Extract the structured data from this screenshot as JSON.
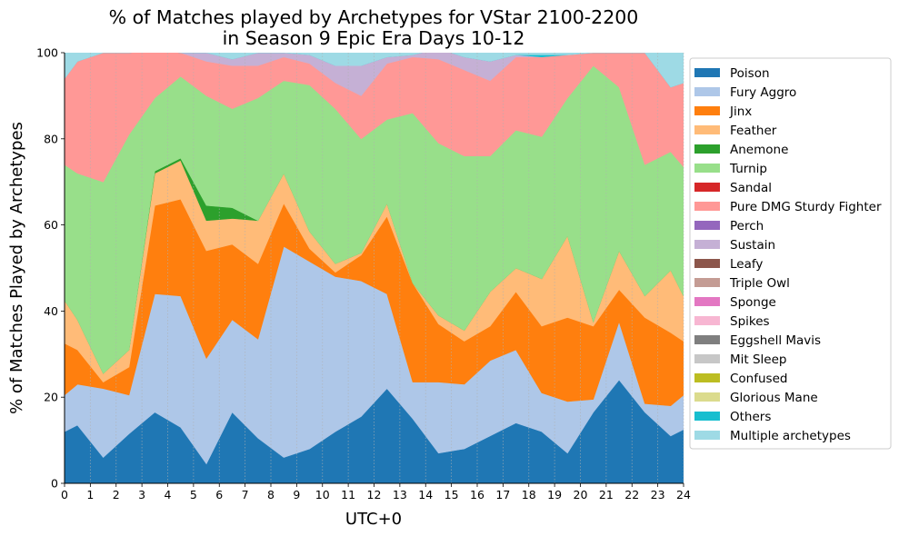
{
  "chart_data": {
    "type": "area",
    "stacked": true,
    "title": [
      "% of Matches played by Archetypes for VStar 2100-2200",
      "in Season 9 Epic Era Days 10-12"
    ],
    "xlabel": "UTC+0",
    "ylabel": "% of Matches Played by Archetypes",
    "xlim": [
      0,
      24
    ],
    "ylim": [
      0,
      100
    ],
    "xticks": [
      0,
      1,
      2,
      3,
      4,
      5,
      6,
      7,
      8,
      9,
      10,
      11,
      12,
      13,
      14,
      15,
      16,
      17,
      18,
      19,
      20,
      21,
      22,
      23,
      24
    ],
    "yticks": [
      0,
      20,
      40,
      60,
      80,
      100
    ],
    "grid": "vertical-dotted",
    "legend_position": "right-outside",
    "x": [
      0,
      0.5,
      1.5,
      2.5,
      3.5,
      4.5,
      5.5,
      6.5,
      7.5,
      8.5,
      9.5,
      10.5,
      11.5,
      12.5,
      13.5,
      14.5,
      15.5,
      16.5,
      17.5,
      18.5,
      19.5,
      20.5,
      21.5,
      22.5,
      23.5,
      24
    ],
    "series": [
      {
        "name": "Poison",
        "color": "#1f77b4",
        "values": [
          12,
          13.5,
          6,
          11.5,
          16.5,
          13,
          4.5,
          16.5,
          10.5,
          6,
          8,
          12,
          15.5,
          22,
          15,
          7,
          8,
          11,
          14,
          12,
          7,
          16.5,
          24,
          16.5,
          11,
          12.5
        ]
      },
      {
        "name": "Fury Aggro",
        "color": "#aec7e8",
        "values": [
          8.5,
          9.5,
          16,
          9,
          27.5,
          30.5,
          24.5,
          21.5,
          23,
          49,
          43.5,
          36,
          31.5,
          22,
          8.5,
          16.5,
          15,
          17.5,
          17,
          9,
          12,
          3,
          13.5,
          2,
          7,
          8
        ]
      },
      {
        "name": "Jinx",
        "color": "#ff7f0e",
        "values": [
          12,
          8,
          1.5,
          6.5,
          20.5,
          22.5,
          25,
          17.5,
          17.5,
          10,
          3,
          1,
          6,
          18,
          23,
          13.5,
          10,
          8,
          13.5,
          15.5,
          19.5,
          17,
          7.5,
          20,
          17,
          12.5
        ]
      },
      {
        "name": "Feather",
        "color": "#ffbb78",
        "values": [
          10,
          7,
          2,
          4,
          7.5,
          9,
          7,
          6,
          10,
          7,
          4,
          2,
          0.5,
          3,
          0,
          2,
          2.5,
          8,
          5.5,
          11,
          19,
          1,
          9,
          5,
          14.5,
          10.5
        ]
      },
      {
        "name": "Anemone",
        "color": "#2ca02c",
        "values": [
          0,
          0,
          0,
          0,
          0.5,
          0.5,
          3.5,
          2.5,
          0,
          0,
          0,
          0,
          0,
          0,
          0,
          0,
          0,
          0,
          0,
          0,
          0,
          0,
          0,
          0,
          0,
          0
        ]
      },
      {
        "name": "Turnip",
        "color": "#98df8a",
        "values": [
          31.5,
          34,
          44.5,
          50,
          17,
          19,
          25.5,
          23,
          28.5,
          21.5,
          34,
          36,
          26.5,
          19.5,
          39.5,
          40,
          40.5,
          31.5,
          32,
          33,
          32,
          59.5,
          38,
          30.5,
          27.5,
          30
        ]
      },
      {
        "name": "Sandal",
        "color": "#d62728",
        "values": [
          0,
          0,
          0,
          0,
          0,
          0,
          0,
          0,
          0,
          0,
          0,
          0,
          0,
          0,
          0,
          0,
          0,
          0,
          0,
          0,
          0,
          0,
          0,
          0,
          0,
          0
        ]
      },
      {
        "name": "Pure DMG Sturdy Fighter",
        "color": "#ff9896",
        "values": [
          20,
          26,
          30,
          19,
          11,
          5.5,
          8,
          10,
          7.5,
          5.5,
          5,
          6,
          10,
          13,
          13,
          19.5,
          20,
          17.5,
          17,
          18.5,
          10,
          3,
          8,
          26,
          15,
          19.5
        ]
      },
      {
        "name": "Perch",
        "color": "#9467bd",
        "values": [
          0,
          0,
          0,
          0,
          0,
          0,
          0,
          0,
          0,
          0,
          0,
          0,
          0,
          0,
          0,
          0,
          0,
          0,
          0,
          0,
          0,
          0,
          0,
          0,
          0,
          0
        ]
      },
      {
        "name": "Sustain",
        "color": "#c5b0d5",
        "values": [
          0,
          0,
          0,
          0,
          0,
          0,
          2,
          1.5,
          3,
          1,
          2,
          4,
          7,
          1.5,
          0.5,
          2.5,
          3,
          4.5,
          0.5,
          0,
          0,
          0,
          0,
          0,
          0,
          0
        ]
      },
      {
        "name": "Leafy",
        "color": "#8c564b",
        "values": [
          0,
          0,
          0,
          0,
          0,
          0,
          0,
          0,
          0,
          0,
          0,
          0,
          0,
          0,
          0,
          0,
          0,
          0,
          0,
          0,
          0,
          0,
          0,
          0,
          0,
          0
        ]
      },
      {
        "name": "Triple Owl",
        "color": "#c49c94",
        "values": [
          0,
          0,
          0,
          0,
          0,
          0,
          0,
          0,
          0,
          0,
          0,
          0,
          0,
          0,
          0,
          0,
          0,
          0,
          0,
          0,
          0,
          0,
          0,
          0,
          0,
          0
        ]
      },
      {
        "name": "Sponge",
        "color": "#e377c2",
        "values": [
          0,
          0,
          0,
          0,
          0,
          0,
          0,
          0,
          0,
          0,
          0,
          0,
          0,
          0,
          0,
          0,
          0,
          0,
          0,
          0,
          0,
          0,
          0,
          0,
          0,
          0
        ]
      },
      {
        "name": "Spikes",
        "color": "#f7b6d2",
        "values": [
          0,
          0,
          0,
          0,
          0,
          0,
          0,
          0,
          0,
          0,
          0,
          0,
          0,
          0,
          0,
          0,
          0,
          0,
          0,
          0,
          0,
          0,
          0,
          0,
          0,
          0
        ]
      },
      {
        "name": "Eggshell Mavis",
        "color": "#7f7f7f",
        "values": [
          0,
          0,
          0,
          0,
          0,
          0,
          0,
          0,
          0,
          0,
          0,
          0,
          0,
          0,
          0,
          0,
          0,
          0,
          0,
          0,
          0,
          0,
          0,
          0,
          0,
          0
        ]
      },
      {
        "name": "Mit Sleep",
        "color": "#c7c7c7",
        "values": [
          0,
          0,
          0,
          0,
          0,
          0,
          0,
          0,
          0,
          0,
          0,
          0,
          0,
          0,
          0,
          0,
          0,
          0,
          0,
          0,
          0,
          0,
          0,
          0,
          0,
          0
        ]
      },
      {
        "name": "Confused",
        "color": "#bcbd22",
        "values": [
          0,
          0,
          0,
          0,
          0,
          0,
          0,
          0,
          0,
          0,
          0,
          0,
          0,
          0,
          0,
          0,
          0,
          0,
          0,
          0,
          0,
          0,
          0,
          0,
          0,
          0
        ]
      },
      {
        "name": "Glorious Mane",
        "color": "#dbdb8d",
        "values": [
          0,
          0,
          0,
          0,
          0,
          0,
          0,
          0,
          0,
          0,
          0,
          0,
          0,
          0,
          0,
          0,
          0,
          0,
          0,
          0,
          0,
          0,
          0,
          0,
          0,
          0
        ]
      },
      {
        "name": "Others",
        "color": "#17becf",
        "values": [
          0,
          0,
          0,
          0,
          0.5,
          0,
          0,
          0,
          0,
          0,
          0,
          0,
          0,
          0,
          0,
          0,
          0,
          0,
          0,
          0.5,
          0,
          0,
          0,
          0,
          0,
          0
        ]
      },
      {
        "name": "Multiple archetypes",
        "color": "#9edae5",
        "values": [
          6,
          2,
          0,
          0,
          0,
          0,
          0,
          1.5,
          0,
          0,
          0.5,
          3,
          3,
          1,
          0.5,
          1,
          1,
          2,
          0.5,
          0.5,
          0.5,
          0,
          0,
          0,
          8,
          7
        ]
      }
    ]
  }
}
